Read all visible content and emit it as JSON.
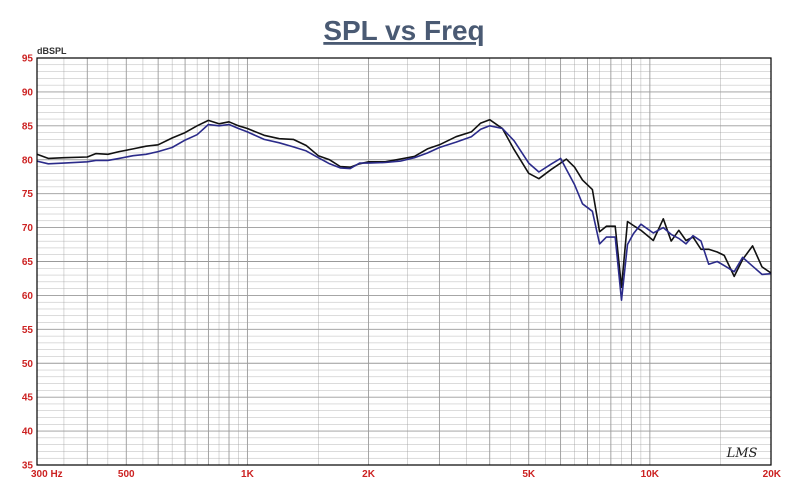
{
  "chart_data": {
    "type": "line",
    "title": "SPL vs Freq",
    "ylabel": "dBSPL",
    "xlabel": "",
    "x_scale": "log",
    "xlim": [
      300,
      20000
    ],
    "ylim": [
      35,
      95
    ],
    "grid": true,
    "y_ticks": [
      "35",
      "40",
      "45",
      "50",
      "55",
      "60",
      "65",
      "70",
      "75",
      "80",
      "85",
      "90",
      "95"
    ],
    "x_ticks": [
      {
        "value": 300,
        "label": "300 Hz"
      },
      {
        "value": 500,
        "label": "500"
      },
      {
        "value": 1000,
        "label": "1K"
      },
      {
        "value": 2000,
        "label": "2K"
      },
      {
        "value": 5000,
        "label": "5K"
      },
      {
        "value": 10000,
        "label": "10K"
      },
      {
        "value": 20000,
        "label": "20K"
      }
    ],
    "watermark": "LMS",
    "colors": {
      "frame": "#000000",
      "grid": "#9a9a9a",
      "tick_label": "#cc2222",
      "title": "#4a5a73"
    },
    "series": [
      {
        "color": "#111111",
        "x": [
          300,
          320,
          350,
          400,
          420,
          450,
          480,
          520,
          560,
          600,
          650,
          700,
          750,
          800,
          850,
          900,
          950,
          1000,
          1100,
          1200,
          1300,
          1400,
          1500,
          1600,
          1700,
          1800,
          1900,
          2000,
          2200,
          2400,
          2600,
          2800,
          3000,
          3300,
          3600,
          3800,
          4000,
          4300,
          4600,
          5000,
          5300,
          5700,
          6000,
          6200,
          6500,
          6800,
          7200,
          7500,
          7800,
          8200,
          8500,
          8800,
          9100,
          9500,
          10200,
          10800,
          11300,
          11800,
          12300,
          12800,
          13400,
          14000,
          14700,
          15300,
          16200,
          17000,
          18000,
          19000,
          20000
        ],
        "y": [
          80.8,
          80.2,
          80.3,
          80.4,
          80.9,
          80.8,
          81.2,
          81.6,
          82.0,
          82.2,
          83.2,
          84.0,
          85.0,
          85.8,
          85.3,
          85.6,
          85.0,
          84.6,
          83.6,
          83.1,
          83.0,
          82.1,
          80.6,
          80.0,
          79.0,
          78.9,
          79.4,
          79.7,
          79.7,
          80.1,
          80.5,
          81.6,
          82.2,
          83.4,
          84.1,
          85.4,
          85.9,
          84.6,
          81.5,
          78.0,
          77.2,
          78.6,
          79.5,
          80.1,
          78.9,
          77.0,
          75.6,
          69.4,
          70.2,
          70.2,
          61.2,
          70.9,
          70.3,
          69.6,
          68.1,
          71.3,
          68.0,
          69.6,
          68.1,
          68.6,
          66.8,
          66.8,
          66.4,
          65.9,
          62.8,
          65.3,
          67.3,
          64.2,
          63.3
        ]
      },
      {
        "color": "#2b2b8a",
        "x": [
          300,
          320,
          350,
          400,
          420,
          450,
          480,
          520,
          560,
          600,
          650,
          700,
          750,
          800,
          850,
          900,
          950,
          1000,
          1100,
          1200,
          1300,
          1400,
          1500,
          1600,
          1700,
          1800,
          1900,
          2000,
          2200,
          2400,
          2600,
          2800,
          3000,
          3300,
          3600,
          3800,
          4000,
          4300,
          4600,
          5000,
          5300,
          5700,
          6000,
          6200,
          6500,
          6800,
          7200,
          7500,
          7800,
          8200,
          8500,
          8800,
          9100,
          9500,
          10200,
          10800,
          11300,
          11800,
          12300,
          12800,
          13400,
          14000,
          14700,
          15300,
          16200,
          17000,
          18000,
          19000,
          20000
        ],
        "y": [
          79.8,
          79.4,
          79.5,
          79.7,
          79.9,
          79.9,
          80.2,
          80.6,
          80.8,
          81.2,
          81.8,
          82.9,
          83.7,
          85.2,
          85.0,
          85.2,
          84.6,
          84.1,
          83.0,
          82.5,
          81.9,
          81.3,
          80.3,
          79.4,
          78.8,
          78.7,
          79.5,
          79.5,
          79.6,
          79.8,
          80.3,
          81.0,
          81.8,
          82.6,
          83.4,
          84.5,
          85.0,
          84.6,
          82.8,
          79.5,
          78.2,
          79.4,
          80.2,
          78.6,
          76.3,
          73.5,
          72.4,
          67.6,
          68.6,
          68.6,
          59.3,
          67.5,
          69.1,
          70.5,
          69.2,
          70.0,
          69.0,
          68.4,
          67.6,
          68.8,
          68.0,
          64.6,
          65.0,
          64.4,
          63.5,
          65.6,
          64.3,
          63.1,
          63.2
        ]
      }
    ]
  }
}
